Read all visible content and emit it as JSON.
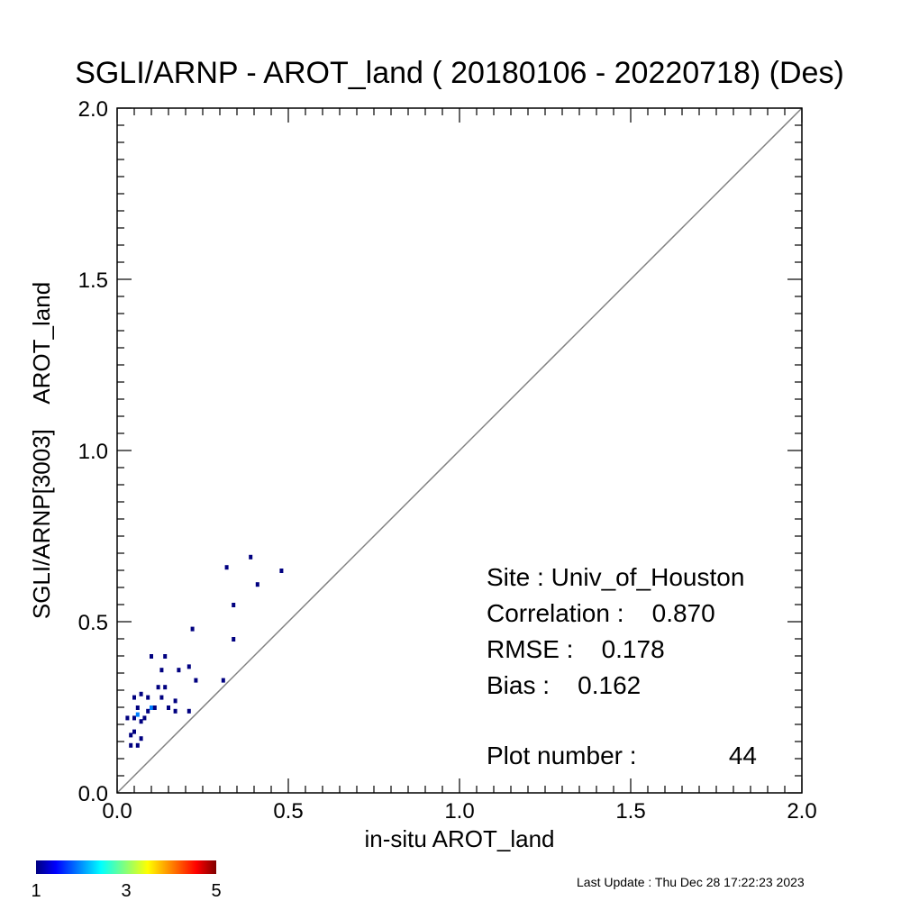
{
  "chart_data": {
    "type": "scatter",
    "title": "SGLI/ARNP - AROT_land ( 20180106 - 20220718) (Des)",
    "xlabel": "in-situ AROT_land",
    "ylabel": "SGLI/ARNP[3003]    AROT_land",
    "xlim": [
      0.0,
      2.0
    ],
    "ylim": [
      0.0,
      2.0
    ],
    "x_ticks": [
      "0.0",
      "0.5",
      "1.0",
      "1.5",
      "2.0"
    ],
    "y_ticks": [
      "0.0",
      "0.5",
      "1.0",
      "1.5",
      "2.0"
    ],
    "one_to_one_line": true,
    "grid": false,
    "points": [
      {
        "x": 0.03,
        "y": 0.22,
        "count": 1
      },
      {
        "x": 0.04,
        "y": 0.17,
        "count": 1
      },
      {
        "x": 0.04,
        "y": 0.14,
        "count": 1
      },
      {
        "x": 0.05,
        "y": 0.28,
        "count": 1
      },
      {
        "x": 0.05,
        "y": 0.22,
        "count": 1
      },
      {
        "x": 0.05,
        "y": 0.18,
        "count": 1
      },
      {
        "x": 0.06,
        "y": 0.25,
        "count": 1
      },
      {
        "x": 0.06,
        "y": 0.23,
        "count": 2
      },
      {
        "x": 0.06,
        "y": 0.14,
        "count": 1
      },
      {
        "x": 0.07,
        "y": 0.29,
        "count": 1
      },
      {
        "x": 0.07,
        "y": 0.21,
        "count": 1
      },
      {
        "x": 0.07,
        "y": 0.16,
        "count": 1
      },
      {
        "x": 0.08,
        "y": 0.22,
        "count": 1
      },
      {
        "x": 0.09,
        "y": 0.28,
        "count": 1
      },
      {
        "x": 0.09,
        "y": 0.24,
        "count": 1
      },
      {
        "x": 0.1,
        "y": 0.4,
        "count": 1
      },
      {
        "x": 0.1,
        "y": 0.25,
        "count": 2
      },
      {
        "x": 0.11,
        "y": 0.25,
        "count": 1
      },
      {
        "x": 0.12,
        "y": 0.31,
        "count": 1
      },
      {
        "x": 0.13,
        "y": 0.36,
        "count": 1
      },
      {
        "x": 0.13,
        "y": 0.28,
        "count": 1
      },
      {
        "x": 0.14,
        "y": 0.4,
        "count": 1
      },
      {
        "x": 0.14,
        "y": 0.31,
        "count": 1
      },
      {
        "x": 0.15,
        "y": 0.25,
        "count": 1
      },
      {
        "x": 0.17,
        "y": 0.27,
        "count": 1
      },
      {
        "x": 0.17,
        "y": 0.24,
        "count": 1
      },
      {
        "x": 0.18,
        "y": 0.36,
        "count": 1
      },
      {
        "x": 0.21,
        "y": 0.37,
        "count": 1
      },
      {
        "x": 0.21,
        "y": 0.24,
        "count": 1
      },
      {
        "x": 0.22,
        "y": 0.48,
        "count": 1
      },
      {
        "x": 0.23,
        "y": 0.33,
        "count": 1
      },
      {
        "x": 0.31,
        "y": 0.33,
        "count": 1
      },
      {
        "x": 0.32,
        "y": 0.66,
        "count": 1
      },
      {
        "x": 0.34,
        "y": 0.55,
        "count": 1
      },
      {
        "x": 0.34,
        "y": 0.45,
        "count": 1
      },
      {
        "x": 0.39,
        "y": 0.69,
        "count": 1
      },
      {
        "x": 0.41,
        "y": 0.61,
        "count": 1
      },
      {
        "x": 0.48,
        "y": 0.65,
        "count": 1
      }
    ],
    "stats": {
      "site": "Site : Univ_of_Houston",
      "correlation": "Correlation :    0.870",
      "rmse": "RMSE :    0.178",
      "bias": "Bias :    0.162",
      "plot_number": "Plot number :",
      "plot_number_value": "44"
    },
    "colorbar": {
      "min_label": "1",
      "mid_label": "3",
      "max_label": "5",
      "min": 1,
      "max": 5,
      "colormap": "jet"
    },
    "last_update": "Last Update : Thu Dec 28 17:22:23 2023"
  },
  "colors": {
    "axis": "#000000",
    "one_to_one_line": "#808080",
    "colormap_stops": [
      "#00007f",
      "#0000ff",
      "#00ffff",
      "#ffff00",
      "#ff0000",
      "#7f0000"
    ]
  }
}
